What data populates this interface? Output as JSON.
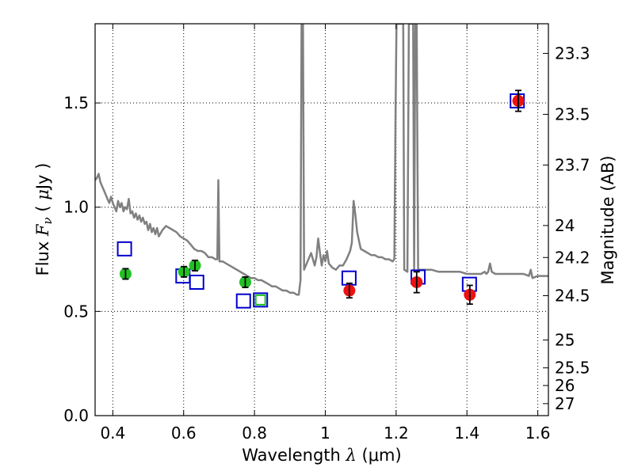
{
  "chart_data": {
    "type": "scatter",
    "x_axis": {
      "label_prefix": "Wavelength ",
      "label_symbol": "λ",
      "label_suffix": " (μm)",
      "range": [
        0.35,
        1.63
      ],
      "ticks": [
        0.4,
        0.6,
        0.8,
        1.0,
        1.2,
        1.4,
        1.6
      ],
      "tick_labels": [
        "0.4",
        "0.6",
        "0.8",
        "1",
        "1.2",
        "1.4",
        "1.6"
      ]
    },
    "y_axis": {
      "label_prefix": "Flux ",
      "label_symbol": "F",
      "label_subscript": "ν",
      "label_open": " ( ",
      "label_mu": "μ",
      "label_unit": "Jy )",
      "range": [
        0.0,
        1.88
      ],
      "ticks": [
        0.0,
        0.5,
        1.0,
        1.5
      ],
      "tick_labels": [
        "0.0",
        "0.5",
        "1.0",
        "1.5"
      ]
    },
    "right_axis": {
      "label": "Magnitude (AB)",
      "magnitudes": [
        23.3,
        23.5,
        23.7,
        24,
        24.2,
        24.5,
        25,
        25.5,
        26,
        27
      ],
      "tick_labels": [
        "23.3",
        "23.5",
        "23.7",
        "24",
        "24.2",
        "24.5",
        "25",
        "25.5",
        "26",
        "27"
      ]
    },
    "grid": true,
    "colors": {
      "template": "#808080",
      "green_points": "#22c022",
      "red_points": "#ee1111",
      "model_boxes": "#0000cc",
      "model_box_green": "#22c022",
      "error_bars": "#000000"
    },
    "series": [
      {
        "name": "Template SED",
        "kind": "line",
        "points": [
          [
            0.35,
            1.13
          ],
          [
            0.355,
            1.14
          ],
          [
            0.36,
            1.16
          ],
          [
            0.365,
            1.12
          ],
          [
            0.37,
            1.1
          ],
          [
            0.375,
            1.08
          ],
          [
            0.38,
            1.06
          ],
          [
            0.385,
            1.04
          ],
          [
            0.39,
            1.02
          ],
          [
            0.395,
            1.05
          ],
          [
            0.4,
            1.02
          ],
          [
            0.405,
            1.0
          ],
          [
            0.41,
            0.98
          ],
          [
            0.415,
            1.03
          ],
          [
            0.42,
            1.0
          ],
          [
            0.425,
            1.02
          ],
          [
            0.43,
            0.98
          ],
          [
            0.435,
            1.0
          ],
          [
            0.44,
            0.99
          ],
          [
            0.445,
            1.04
          ],
          [
            0.45,
            0.97
          ],
          [
            0.455,
            0.98
          ],
          [
            0.46,
            0.95
          ],
          [
            0.465,
            0.97
          ],
          [
            0.47,
            0.94
          ],
          [
            0.475,
            0.96
          ],
          [
            0.48,
            0.93
          ],
          [
            0.485,
            0.95
          ],
          [
            0.49,
            0.92
          ],
          [
            0.495,
            0.93
          ],
          [
            0.5,
            0.89
          ],
          [
            0.505,
            0.92
          ],
          [
            0.51,
            0.88
          ],
          [
            0.515,
            0.9
          ],
          [
            0.52,
            0.87
          ],
          [
            0.525,
            0.9
          ],
          [
            0.53,
            0.86
          ],
          [
            0.54,
            0.89
          ],
          [
            0.55,
            0.91
          ],
          [
            0.56,
            0.9
          ],
          [
            0.57,
            0.89
          ],
          [
            0.58,
            0.88
          ],
          [
            0.59,
            0.86
          ],
          [
            0.6,
            0.85
          ],
          [
            0.61,
            0.84
          ],
          [
            0.62,
            0.82
          ],
          [
            0.63,
            0.8
          ],
          [
            0.64,
            0.79
          ],
          [
            0.65,
            0.79
          ],
          [
            0.66,
            0.78
          ],
          [
            0.67,
            0.76
          ],
          [
            0.68,
            0.76
          ],
          [
            0.69,
            0.75
          ],
          [
            0.695,
            0.75
          ],
          [
            0.698,
            1.13
          ],
          [
            0.701,
            0.74
          ],
          [
            0.71,
            0.74
          ],
          [
            0.72,
            0.73
          ],
          [
            0.73,
            0.72
          ],
          [
            0.74,
            0.71
          ],
          [
            0.75,
            0.7
          ],
          [
            0.76,
            0.69
          ],
          [
            0.77,
            0.68
          ],
          [
            0.78,
            0.67
          ],
          [
            0.79,
            0.66
          ],
          [
            0.8,
            0.66
          ],
          [
            0.81,
            0.65
          ],
          [
            0.82,
            0.65
          ],
          [
            0.83,
            0.64
          ],
          [
            0.84,
            0.63
          ],
          [
            0.85,
            0.62
          ],
          [
            0.86,
            0.62
          ],
          [
            0.87,
            0.61
          ],
          [
            0.88,
            0.6
          ],
          [
            0.89,
            0.6
          ],
          [
            0.9,
            0.59
          ],
          [
            0.91,
            0.59
          ],
          [
            0.92,
            0.58
          ],
          [
            0.925,
            0.58
          ],
          [
            0.93,
            0.65
          ],
          [
            0.933,
            1.88
          ],
          [
            0.937,
            1.88
          ],
          [
            0.94,
            0.7
          ],
          [
            0.95,
            0.74
          ],
          [
            0.96,
            0.78
          ],
          [
            0.97,
            0.72
          ],
          [
            0.975,
            0.76
          ],
          [
            0.98,
            0.85
          ],
          [
            0.985,
            0.78
          ],
          [
            0.99,
            0.72
          ],
          [
            0.995,
            0.77
          ],
          [
            1.0,
            0.74
          ],
          [
            1.005,
            0.79
          ],
          [
            1.01,
            0.73
          ],
          [
            1.02,
            0.71
          ],
          [
            1.03,
            0.7
          ],
          [
            1.04,
            0.72
          ],
          [
            1.05,
            0.72
          ],
          [
            1.06,
            0.75
          ],
          [
            1.07,
            0.79
          ],
          [
            1.075,
            0.83
          ],
          [
            1.08,
            1.03
          ],
          [
            1.085,
            0.96
          ],
          [
            1.09,
            0.88
          ],
          [
            1.095,
            0.84
          ],
          [
            1.1,
            0.8
          ],
          [
            1.11,
            0.79
          ],
          [
            1.12,
            0.78
          ],
          [
            1.13,
            0.77
          ],
          [
            1.14,
            0.77
          ],
          [
            1.15,
            0.76
          ],
          [
            1.16,
            0.76
          ],
          [
            1.17,
            0.75
          ],
          [
            1.18,
            0.75
          ],
          [
            1.19,
            0.74
          ],
          [
            1.195,
            0.75
          ],
          [
            1.198,
            1.4
          ],
          [
            1.201,
            1.88
          ],
          [
            1.22,
            1.88
          ],
          [
            1.223,
            0.7
          ],
          [
            1.232,
            0.69
          ],
          [
            1.236,
            1.88
          ],
          [
            1.248,
            1.88
          ],
          [
            1.251,
            0.7
          ],
          [
            1.254,
            1.88
          ],
          [
            1.258,
            1.88
          ],
          [
            1.262,
            0.7
          ],
          [
            1.27,
            0.7
          ],
          [
            1.28,
            0.7
          ],
          [
            1.3,
            0.7
          ],
          [
            1.32,
            0.69
          ],
          [
            1.34,
            0.69
          ],
          [
            1.36,
            0.69
          ],
          [
            1.38,
            0.69
          ],
          [
            1.4,
            0.68
          ],
          [
            1.42,
            0.68
          ],
          [
            1.44,
            0.68
          ],
          [
            1.45,
            0.69
          ],
          [
            1.455,
            0.68
          ],
          [
            1.46,
            0.69
          ],
          [
            1.465,
            0.73
          ],
          [
            1.47,
            0.69
          ],
          [
            1.48,
            0.68
          ],
          [
            1.5,
            0.68
          ],
          [
            1.52,
            0.68
          ],
          [
            1.54,
            0.68
          ],
          [
            1.56,
            0.68
          ],
          [
            1.575,
            0.67
          ],
          [
            1.58,
            0.7
          ],
          [
            1.585,
            0.66
          ],
          [
            1.6,
            0.67
          ],
          [
            1.615,
            0.67
          ],
          [
            1.63,
            0.67
          ]
        ]
      },
      {
        "name": "Observed (optical)",
        "kind": "points",
        "color_key": "green_points",
        "points": [
          {
            "x": 0.436,
            "y": 0.68,
            "err": 0.025
          },
          {
            "x": 0.601,
            "y": 0.69,
            "err": 0.025
          },
          {
            "x": 0.632,
            "y": 0.72,
            "err": 0.025
          },
          {
            "x": 0.774,
            "y": 0.64,
            "err": 0.025
          }
        ]
      },
      {
        "name": "Observed (NIR)",
        "kind": "points",
        "color_key": "red_points",
        "points": [
          {
            "x": 1.068,
            "y": 0.6,
            "err": 0.035
          },
          {
            "x": 1.258,
            "y": 0.64,
            "err": 0.05
          },
          {
            "x": 1.408,
            "y": 0.58,
            "err": 0.045
          },
          {
            "x": 1.545,
            "y": 1.51,
            "err": 0.05
          }
        ]
      },
      {
        "name": "Model photometry",
        "kind": "boxes",
        "color_key": "model_boxes",
        "points": [
          {
            "x": 0.433,
            "y": 0.8
          },
          {
            "x": 0.598,
            "y": 0.67
          },
          {
            "x": 0.637,
            "y": 0.64
          },
          {
            "x": 0.769,
            "y": 0.55
          },
          {
            "x": 0.817,
            "y": 0.555
          },
          {
            "x": 1.067,
            "y": 0.66
          },
          {
            "x": 1.262,
            "y": 0.665
          },
          {
            "x": 1.407,
            "y": 0.63
          },
          {
            "x": 1.542,
            "y": 1.51
          }
        ]
      },
      {
        "name": "Model (inner)",
        "kind": "boxes",
        "color_key": "model_box_green",
        "small": true,
        "points": [
          {
            "x": 0.817,
            "y": 0.555
          }
        ]
      }
    ]
  }
}
